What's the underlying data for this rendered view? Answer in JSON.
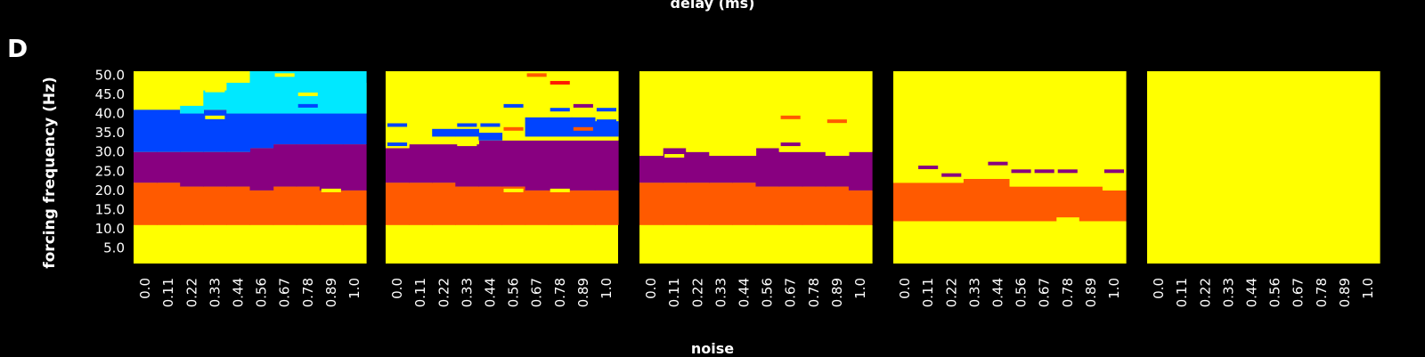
{
  "figure": {
    "panel_letter": "D",
    "top_label": "delay (ms)",
    "y_label": "forcing frequency (Hz)",
    "x_label": "noise"
  },
  "colors": {
    "yellow": "#FFFF00",
    "orange": "#FF5A00",
    "purple": "#880080",
    "blue": "#0044FF",
    "cyan": "#00E8FF",
    "red": "#FF1A00",
    "background": "#000000",
    "text": "#FFFFFF"
  },
  "chart_data": {
    "type": "heatmap",
    "x_ticks": [
      "0.0",
      "0.11",
      "0.22",
      "0.33",
      "0.44",
      "0.56",
      "0.67",
      "0.78",
      "0.89",
      "1.0"
    ],
    "y_ticks": [
      "5.0",
      "10.0",
      "15.0",
      "20.0",
      "25.0",
      "30.0",
      "35.0",
      "40.0",
      "45.0",
      "50.0"
    ],
    "ylim": [
      1,
      51
    ],
    "panels": [
      {
        "bands": [
          {
            "color": "yellow",
            "bottoms": [
              1,
              1,
              1,
              1,
              1,
              1,
              1,
              1,
              1,
              1
            ],
            "tops": [
              11,
              11,
              11,
              11,
              11,
              11,
              11,
              11,
              11,
              11
            ]
          },
          {
            "color": "orange",
            "bottoms": [
              11,
              11,
              11,
              11,
              11,
              11,
              11,
              11,
              11,
              11
            ],
            "tops": [
              22,
              22,
              21,
              21,
              21,
              20,
              21,
              21,
              20,
              20
            ]
          },
          {
            "color": "purple",
            "bottoms": [
              22,
              22,
              21,
              21,
              21,
              20,
              21,
              21,
              20,
              20
            ],
            "tops": [
              30,
              30,
              30,
              30,
              30,
              31,
              32,
              32,
              32,
              32
            ]
          },
          {
            "color": "blue",
            "bottoms": [
              30,
              30,
              30,
              30,
              30,
              31,
              32,
              32,
              32,
              32
            ],
            "tops": [
              41,
              41,
              40,
              41,
              40,
              40,
              40,
              40,
              40,
              40
            ]
          },
          {
            "color": "yellow",
            "bottoms": [
              41,
              41,
              40,
              41,
              40,
              40,
              40,
              40,
              40,
              40
            ],
            "tops": [
              51,
              51,
              42,
              44,
              45,
              47,
              48,
              48,
              47,
              48
            ]
          },
          {
            "color": "cyan",
            "bottoms": [
              51,
              51,
              40,
              41,
              40,
              40,
              40,
              40,
              40,
              40
            ],
            "tops": [
              51,
              51,
              42,
              46,
              48,
              51,
              51,
              51,
              51,
              51
            ]
          }
        ],
        "lines": [
          {
            "col": 3,
            "y": 39,
            "color": "yellow"
          },
          {
            "col": 8,
            "y": 20,
            "color": "yellow"
          },
          {
            "col": 7,
            "y": 42,
            "color": "blue"
          },
          {
            "col": 3,
            "y": 46,
            "color": "yellow"
          },
          {
            "col": 6,
            "y": 50,
            "color": "yellow"
          },
          {
            "col": 7,
            "y": 45,
            "color": "yellow"
          }
        ]
      },
      {
        "bands": [
          {
            "color": "yellow",
            "bottoms": [
              1,
              1,
              1,
              1,
              12,
              11,
              11,
              11,
              11,
              12
            ],
            "tops": [
              11,
              11,
              11,
              11,
              12,
              11,
              11,
              11,
              11,
              12
            ]
          },
          {
            "color": "orange",
            "bottoms": [
              11,
              11,
              11,
              11,
              11,
              11,
              11,
              11,
              11,
              11
            ],
            "tops": [
              22,
              22,
              22,
              21,
              21,
              21,
              20,
              20,
              20,
              20
            ]
          },
          {
            "color": "purple",
            "bottoms": [
              22,
              22,
              22,
              21,
              21,
              21,
              20,
              20,
              20,
              20
            ],
            "tops": [
              31,
              32,
              32,
              32,
              33,
              33,
              33,
              33,
              33,
              33
            ]
          },
          {
            "color": "yellow",
            "bottoms": [
              31,
              32,
              32,
              32,
              33,
              33,
              33,
              33,
              33,
              33
            ],
            "tops": [
              51,
              51,
              51,
              51,
              51,
              51,
              51,
              51,
              51,
              51
            ]
          },
          {
            "color": "blue",
            "bottoms": [
              33,
              33,
              34,
              34,
              33,
              34,
              34,
              34,
              34,
              34
            ],
            "tops": [
              33,
              33,
              36,
              36,
              35,
              34,
              39,
              39,
              39,
              38
            ]
          }
        ],
        "lines": [
          {
            "col": 0,
            "y": 37,
            "color": "blue"
          },
          {
            "col": 0,
            "y": 32,
            "color": "blue"
          },
          {
            "col": 3,
            "y": 37,
            "color": "blue"
          },
          {
            "col": 4,
            "y": 37,
            "color": "blue"
          },
          {
            "col": 5,
            "y": 36,
            "color": "orange"
          },
          {
            "col": 6,
            "y": 50,
            "color": "orange"
          },
          {
            "col": 7,
            "y": 48,
            "color": "red"
          },
          {
            "col": 5,
            "y": 42,
            "color": "blue"
          },
          {
            "col": 7,
            "y": 41,
            "color": "blue"
          },
          {
            "col": 8,
            "y": 42,
            "color": "purple"
          },
          {
            "col": 8,
            "y": 36,
            "color": "orange"
          },
          {
            "col": 9,
            "y": 38,
            "color": "blue"
          },
          {
            "col": 9,
            "y": 41,
            "color": "blue"
          },
          {
            "col": 3,
            "y": 32,
            "color": "yellow"
          },
          {
            "col": 5,
            "y": 20,
            "color": "yellow"
          },
          {
            "col": 7,
            "y": 20,
            "color": "yellow"
          }
        ]
      },
      {
        "bands": [
          {
            "color": "yellow",
            "bottoms": [
              1,
              1,
              1,
              1,
              1,
              1,
              1,
              1,
              1,
              1
            ],
            "tops": [
              11,
              11,
              11,
              11,
              11,
              11,
              11,
              11,
              11,
              11
            ]
          },
          {
            "color": "orange",
            "bottoms": [
              11,
              11,
              11,
              11,
              11,
              11,
              11,
              11,
              11,
              11
            ],
            "tops": [
              22,
              22,
              22,
              22,
              22,
              21,
              21,
              21,
              21,
              20
            ]
          },
          {
            "color": "purple",
            "bottoms": [
              22,
              22,
              22,
              22,
              22,
              21,
              21,
              21,
              21,
              20
            ],
            "tops": [
              29,
              31,
              30,
              29,
              29,
              31,
              30,
              30,
              29,
              30
            ]
          },
          {
            "color": "yellow",
            "bottoms": [
              29,
              31,
              30,
              29,
              29,
              31,
              30,
              30,
              29,
              30
            ],
            "tops": [
              51,
              51,
              51,
              51,
              51,
              51,
              51,
              51,
              51,
              51
            ]
          }
        ],
        "lines": [
          {
            "col": 1,
            "y": 29,
            "color": "yellow"
          },
          {
            "col": 6,
            "y": 32,
            "color": "purple"
          },
          {
            "col": 6,
            "y": 39,
            "color": "orange"
          },
          {
            "col": 8,
            "y": 38,
            "color": "orange"
          }
        ]
      },
      {
        "bands": [
          {
            "color": "yellow",
            "bottoms": [
              1,
              1,
              1,
              1,
              1,
              1,
              1,
              1,
              1,
              1
            ],
            "tops": [
              12,
              12,
              12,
              12,
              12,
              12,
              12,
              13,
              12,
              12
            ]
          },
          {
            "color": "orange",
            "bottoms": [
              12,
              12,
              12,
              12,
              12,
              12,
              12,
              13,
              12,
              12
            ],
            "tops": [
              22,
              22,
              22,
              23,
              23,
              21,
              21,
              21,
              21,
              20
            ]
          },
          {
            "color": "yellow",
            "bottoms": [
              22,
              22,
              22,
              23,
              23,
              21,
              21,
              21,
              21,
              20
            ],
            "tops": [
              51,
              51,
              51,
              51,
              51,
              51,
              51,
              51,
              51,
              51
            ]
          }
        ],
        "lines": [
          {
            "col": 1,
            "y": 26,
            "color": "purple"
          },
          {
            "col": 2,
            "y": 24,
            "color": "purple"
          },
          {
            "col": 5,
            "y": 25,
            "color": "purple"
          },
          {
            "col": 6,
            "y": 25,
            "color": "purple"
          },
          {
            "col": 7,
            "y": 25,
            "color": "purple"
          },
          {
            "col": 4,
            "y": 27,
            "color": "purple"
          },
          {
            "col": 9,
            "y": 25,
            "color": "purple"
          }
        ]
      },
      {
        "bands": [
          {
            "color": "yellow",
            "bottoms": [
              1,
              1,
              1,
              1,
              1,
              1,
              1,
              1,
              1,
              1
            ],
            "tops": [
              51,
              51,
              51,
              51,
              51,
              51,
              51,
              51,
              51,
              51
            ]
          }
        ],
        "lines": []
      }
    ]
  }
}
